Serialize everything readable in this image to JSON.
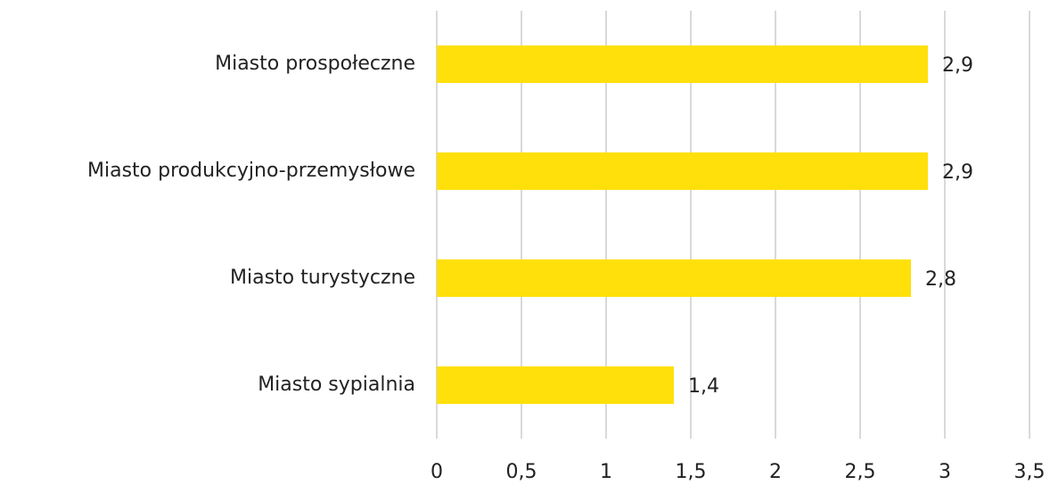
{
  "chart_data": {
    "type": "bar",
    "orientation": "horizontal",
    "categories": [
      "Miasto prospołeczne",
      "Miasto produkcyjno-przemysłowe",
      "Miasto turystyczne",
      "Miasto sypialnia"
    ],
    "values": [
      2.9,
      2.9,
      2.8,
      1.4
    ],
    "value_labels": [
      "2,9",
      "2,9",
      "2,8",
      "1,4"
    ],
    "color": "#ffe00a",
    "xlim": [
      0,
      3.5
    ],
    "xticks": [
      0,
      {
        "value": 0.5,
        "label": "0,5"
      },
      1,
      {
        "value": 1.5,
        "label": "1,5"
      },
      2,
      {
        "value": 2.5,
        "label": "2,5"
      },
      3,
      {
        "value": 3.5,
        "label": "3,5"
      }
    ],
    "grid": true
  }
}
